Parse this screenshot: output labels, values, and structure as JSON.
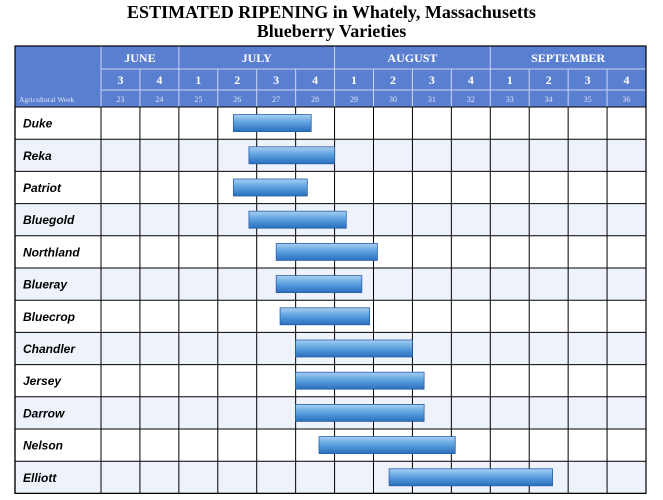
{
  "chart_data": {
    "type": "gantt",
    "title": "ESTIMATED RIPENING in Whately, Massachusetts",
    "subtitle": "Blueberry Varieties",
    "months": [
      {
        "label": "JUNE",
        "weeks": 2
      },
      {
        "label": "JULY",
        "weeks": 4
      },
      {
        "label": "AUGUST",
        "weeks": 4
      },
      {
        "label": "SEPTEMBER",
        "weeks": 4
      }
    ],
    "week_numbers": [
      "3",
      "4",
      "1",
      "2",
      "3",
      "4",
      "1",
      "2",
      "3",
      "4",
      "1",
      "2",
      "3",
      "4"
    ],
    "agricultural_week_label": "Agricultural Week",
    "agricultural_weeks": [
      23,
      24,
      25,
      26,
      27,
      28,
      29,
      30,
      31,
      32,
      33,
      34,
      35,
      36
    ],
    "axis_start_week": 23,
    "axis_end_week": 37,
    "varieties": [
      {
        "name": "Duke",
        "start": 26.4,
        "end": 28.4
      },
      {
        "name": "Reka",
        "start": 26.8,
        "end": 29.0
      },
      {
        "name": "Patriot",
        "start": 26.4,
        "end": 28.3
      },
      {
        "name": "Bluegold",
        "start": 26.8,
        "end": 29.3
      },
      {
        "name": "Northland",
        "start": 27.5,
        "end": 30.1
      },
      {
        "name": "Blueray",
        "start": 27.5,
        "end": 29.7
      },
      {
        "name": "Bluecrop",
        "start": 27.6,
        "end": 29.9
      },
      {
        "name": "Chandler",
        "start": 28.0,
        "end": 31.0
      },
      {
        "name": "Jersey",
        "start": 28.0,
        "end": 31.3
      },
      {
        "name": "Darrow",
        "start": 28.0,
        "end": 31.3
      },
      {
        "name": "Nelson",
        "start": 28.6,
        "end": 32.1
      },
      {
        "name": "Elliott",
        "start": 30.4,
        "end": 34.6
      }
    ],
    "colors": {
      "header_bg": "#5b7fd0",
      "header_text": "#ffffff",
      "row_alt_bg": "#eef2fa",
      "grid": "#000000",
      "bar_light": "#9cc6ee",
      "bar_dark": "#2f78c6"
    }
  }
}
